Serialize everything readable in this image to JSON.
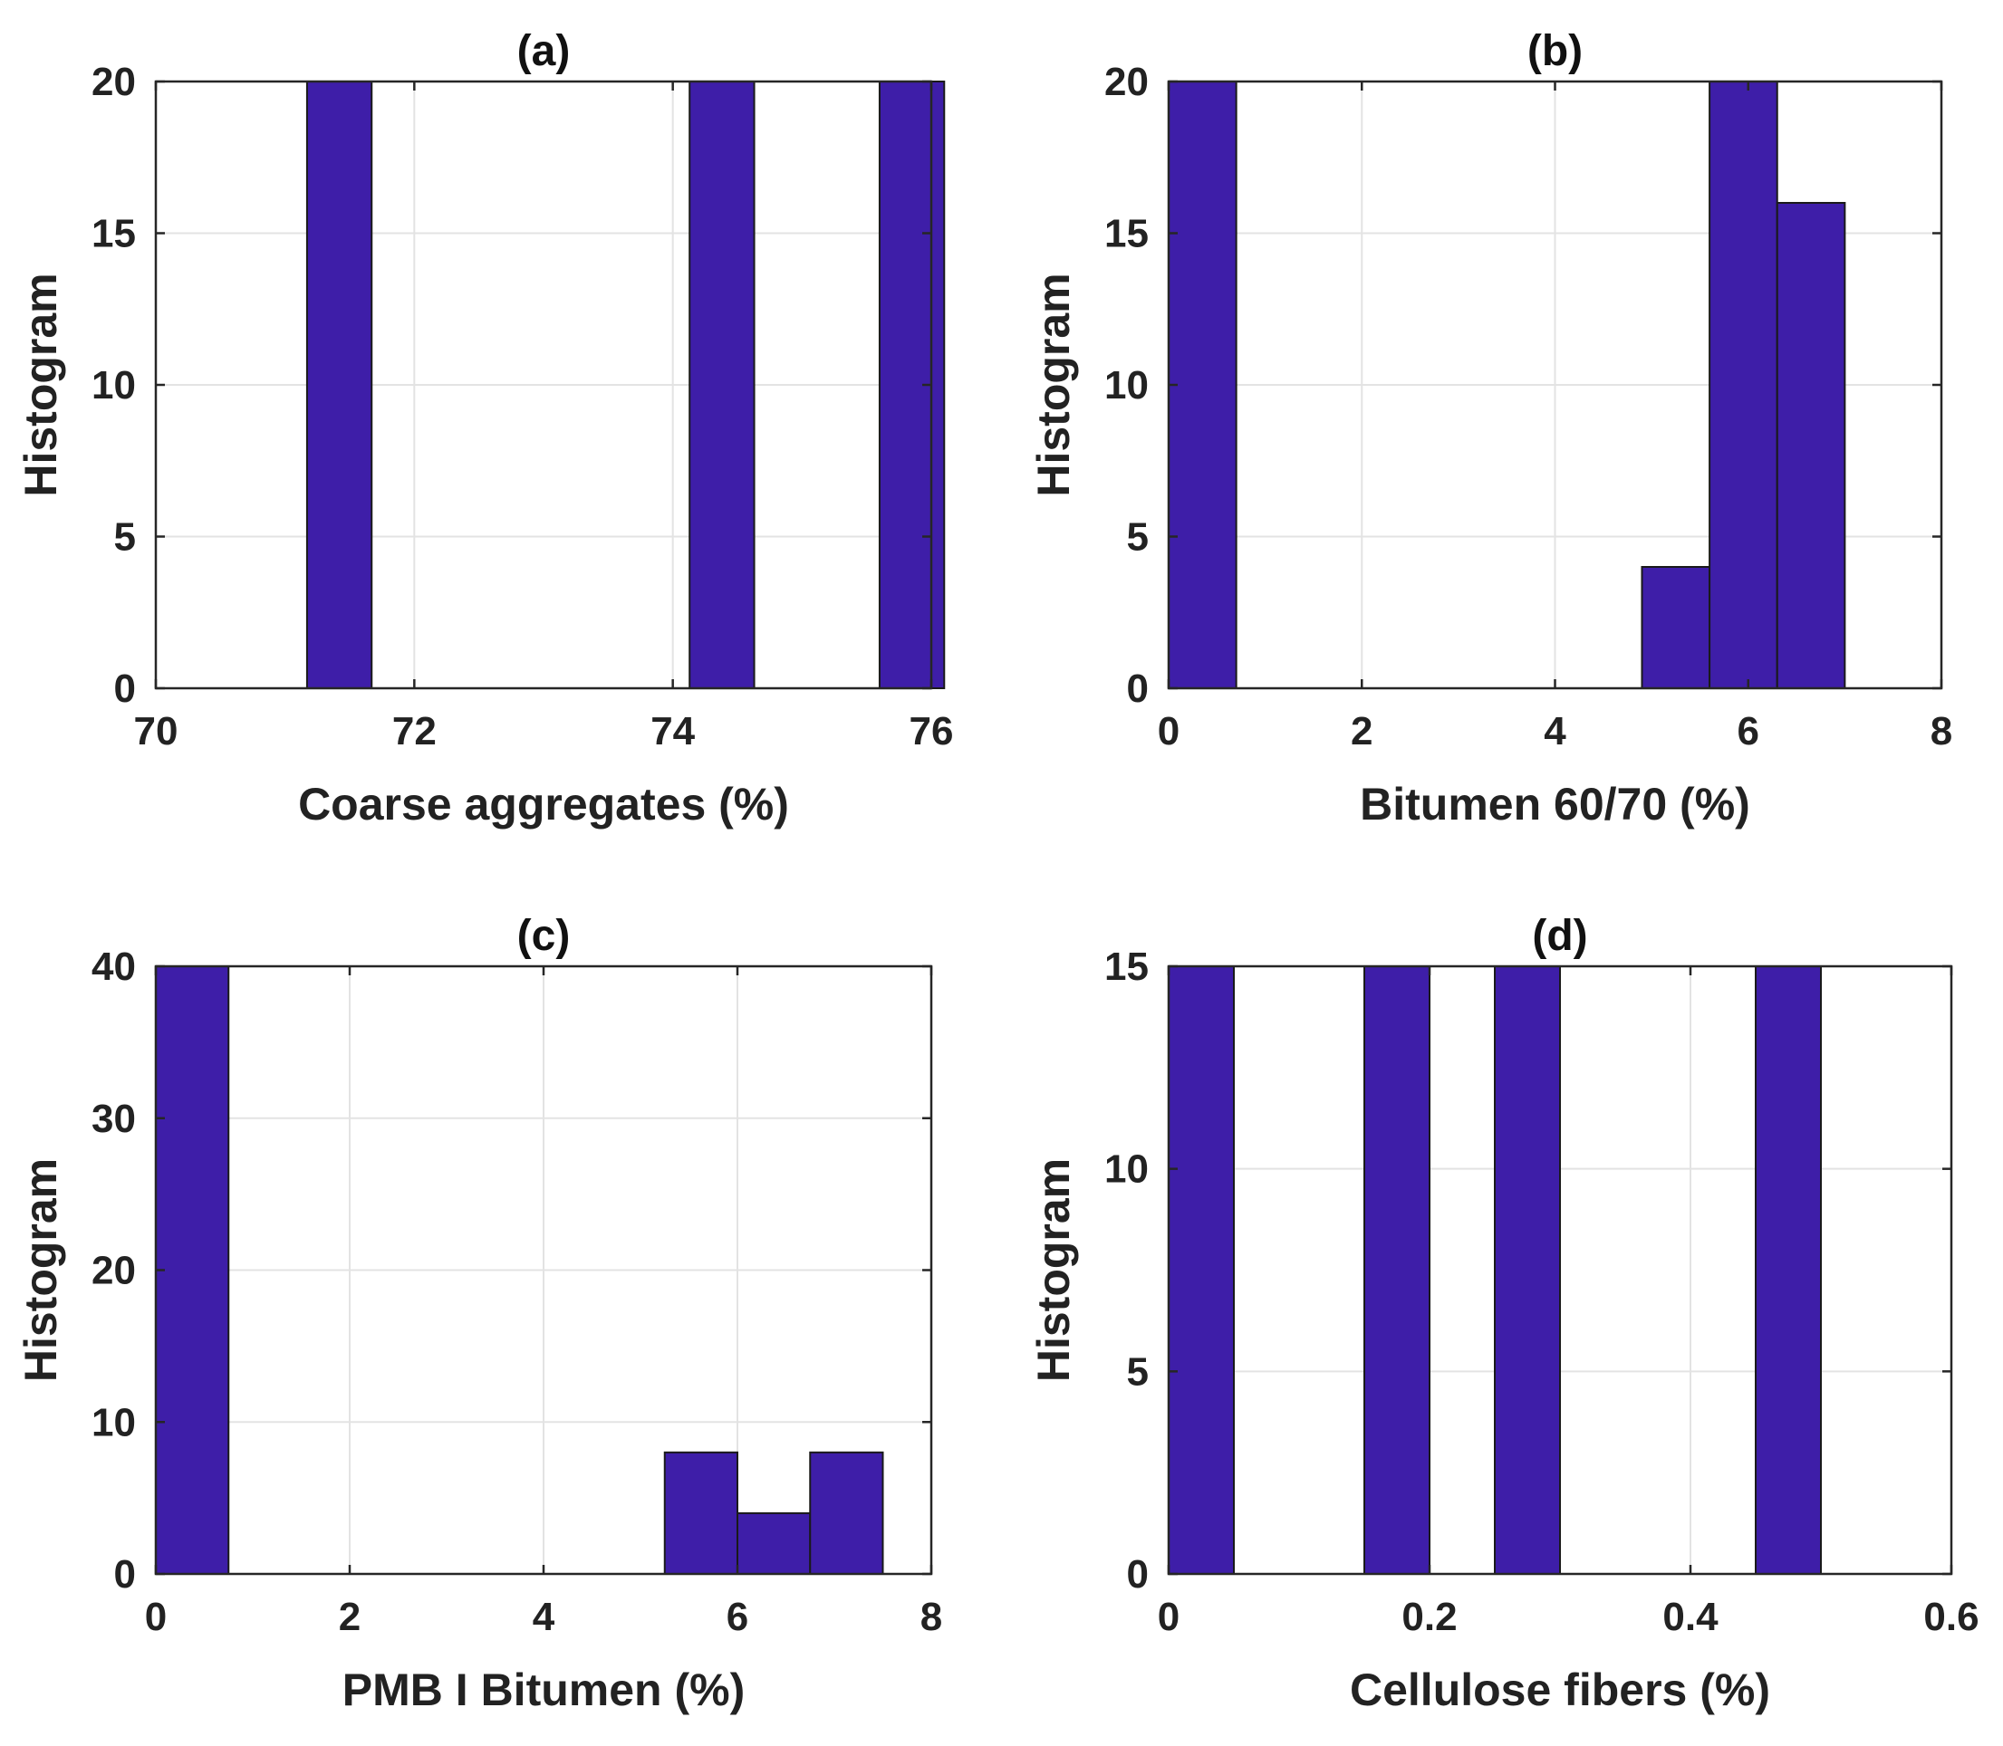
{
  "chart_data": [
    {
      "type": "bar",
      "title": "(a)",
      "xlabel": "Coarse aggregates (%)",
      "ylabel": "Histogram",
      "xlim": [
        70,
        76
      ],
      "ylim": [
        0,
        20
      ],
      "xticks": [
        70,
        72,
        74,
        76
      ],
      "xtick_labels": [
        "70",
        "72",
        "74",
        "76"
      ],
      "yticks": [
        0,
        5,
        10,
        15,
        20
      ],
      "ytick_labels": [
        "0",
        "5",
        "10",
        "15",
        "20"
      ],
      "grid": true,
      "bar_color": "#3e1ea8",
      "bins": [
        {
          "x0": 71.17,
          "x1": 71.67,
          "count": 20
        },
        {
          "x0": 74.13,
          "x1": 74.63,
          "count": 20
        },
        {
          "x0": 75.6,
          "x1": 76.1,
          "count": 20
        }
      ]
    },
    {
      "type": "bar",
      "title": "(b)",
      "xlabel": "Bitumen 60/70 (%)",
      "ylabel": "Histogram",
      "xlim": [
        0,
        8
      ],
      "ylim": [
        0,
        20
      ],
      "xticks": [
        0,
        2,
        4,
        6,
        8
      ],
      "xtick_labels": [
        "0",
        "2",
        "4",
        "6",
        "8"
      ],
      "yticks": [
        0,
        5,
        10,
        15,
        20
      ],
      "ytick_labels": [
        "0",
        "5",
        "10",
        "15",
        "20"
      ],
      "grid": true,
      "bar_color": "#3e1ea8",
      "bins": [
        {
          "x0": 0,
          "x1": 0.7,
          "count": 20
        },
        {
          "x0": 4.9,
          "x1": 5.6,
          "count": 4
        },
        {
          "x0": 5.6,
          "x1": 6.3,
          "count": 20
        },
        {
          "x0": 6.3,
          "x1": 7.0,
          "count": 16
        }
      ]
    },
    {
      "type": "bar",
      "title": "(c)",
      "xlabel": "PMB I Bitumen (%)",
      "ylabel": "Histogram",
      "xlim": [
        0,
        8
      ],
      "ylim": [
        0,
        40
      ],
      "xticks": [
        0,
        2,
        4,
        6,
        8
      ],
      "xtick_labels": [
        "0",
        "2",
        "4",
        "6",
        "8"
      ],
      "yticks": [
        0,
        10,
        20,
        30,
        40
      ],
      "ytick_labels": [
        "0",
        "10",
        "20",
        "30",
        "40"
      ],
      "grid": true,
      "bar_color": "#3e1ea8",
      "bins": [
        {
          "x0": 0,
          "x1": 0.75,
          "count": 40
        },
        {
          "x0": 5.25,
          "x1": 6.0,
          "count": 8
        },
        {
          "x0": 6.0,
          "x1": 6.75,
          "count": 4
        },
        {
          "x0": 6.75,
          "x1": 7.5,
          "count": 8
        }
      ]
    },
    {
      "type": "bar",
      "title": "(d)",
      "xlabel": "Cellulose fibers (%)",
      "ylabel": "Histogram",
      "xlim": [
        0,
        0.6
      ],
      "ylim": [
        0,
        15
      ],
      "xticks": [
        0,
        0.2,
        0.4,
        0.6
      ],
      "xtick_labels": [
        "0",
        "0.2",
        "0.4",
        "0.6"
      ],
      "yticks": [
        0,
        5,
        10,
        15
      ],
      "ytick_labels": [
        "0",
        "5",
        "10",
        "15"
      ],
      "grid": true,
      "bar_color": "#3e1ea8",
      "bins": [
        {
          "x0": 0,
          "x1": 0.05,
          "count": 15
        },
        {
          "x0": 0.15,
          "x1": 0.2,
          "count": 15
        },
        {
          "x0": 0.25,
          "x1": 0.3,
          "count": 15
        },
        {
          "x0": 0.45,
          "x1": 0.5,
          "count": 15
        }
      ]
    }
  ]
}
